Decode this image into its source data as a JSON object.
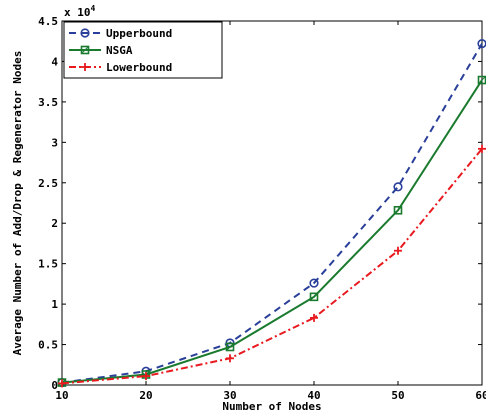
{
  "chart_data": {
    "type": "line",
    "title": "",
    "xlabel": "Number of Nodes",
    "ylabel": "Average Number of Add/Drop & Regenerator Nodes",
    "y_multiplier_label": "x 10",
    "y_multiplier_exponent": "4",
    "xlim": [
      10,
      60
    ],
    "ylim": [
      0,
      4.5
    ],
    "x_ticks": [
      "10",
      "20",
      "30",
      "40",
      "50",
      "60"
    ],
    "y_ticks": [
      "0",
      "0.5",
      "1",
      "1.5",
      "2",
      "2.5",
      "3",
      "3.5",
      "4",
      "4.5"
    ],
    "x_tick_values": [
      10,
      20,
      30,
      40,
      50,
      60
    ],
    "y_tick_values": [
      0,
      0.5,
      1,
      1.5,
      2,
      2.5,
      3,
      3.5,
      4,
      4.5
    ],
    "x": [
      10,
      20,
      30,
      40,
      50,
      60
    ],
    "legend_position": "top-left",
    "grid": false,
    "series": [
      {
        "name": "Upperbound",
        "values": [
          0.03,
          0.17,
          0.52,
          1.26,
          2.45,
          4.22
        ],
        "color": "#2a3f9a",
        "dash": "7,5",
        "marker": "circle"
      },
      {
        "name": "NSGA",
        "values": [
          0.03,
          0.13,
          0.47,
          1.09,
          2.16,
          3.77
        ],
        "color": "#1a7a2e",
        "dash": "",
        "marker": "square"
      },
      {
        "name": "Lowerbound",
        "values": [
          0.02,
          0.11,
          0.33,
          0.83,
          1.66,
          2.92
        ],
        "color": "#e8191f",
        "dash": "7,3,2,3",
        "marker": "plus"
      }
    ]
  }
}
